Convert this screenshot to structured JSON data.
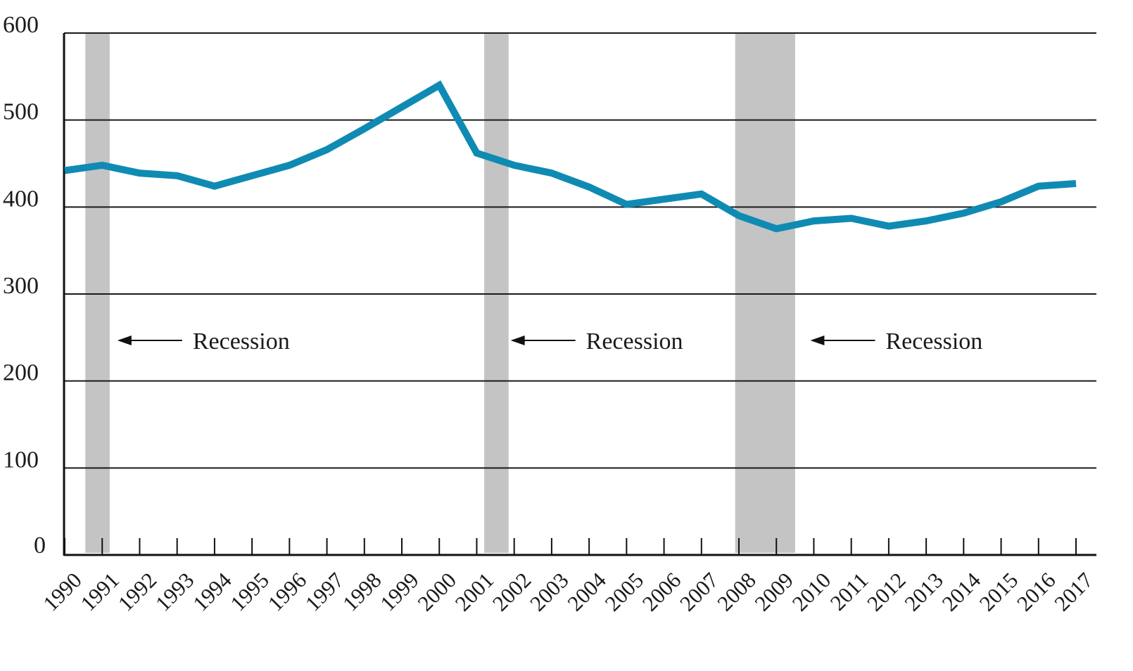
{
  "chart_data": {
    "type": "line",
    "title": "",
    "xlabel": "",
    "ylabel": "",
    "x": [
      1990,
      1991,
      1992,
      1993,
      1994,
      1995,
      1996,
      1997,
      1998,
      1999,
      2000,
      2001,
      2002,
      2003,
      2004,
      2005,
      2006,
      2007,
      2008,
      2009,
      2010,
      2011,
      2012,
      2013,
      2014,
      2015,
      2016,
      2017
    ],
    "ylim": [
      0,
      600
    ],
    "yticks": [
      0,
      100,
      200,
      300,
      400,
      500,
      600
    ],
    "grid": "horizontal",
    "series": [
      {
        "values": [
          442,
          448,
          439,
          436,
          424,
          436,
          448,
          466,
          490,
          515,
          540,
          462,
          448,
          439,
          423,
          403,
          409,
          415,
          390,
          375,
          384,
          387,
          378,
          384,
          393,
          406,
          424,
          427
        ],
        "color": "#0f8bb3"
      }
    ],
    "recessions": [
      {
        "start": 1990.55,
        "end": 1991.2
      },
      {
        "start": 2001.2,
        "end": 2001.85
      },
      {
        "start": 2007.9,
        "end": 2009.5
      }
    ],
    "annotations": [
      {
        "text": "Recession",
        "arrow_target_year": 1991.5
      },
      {
        "text": "Recession",
        "arrow_target_year": 2002.0
      },
      {
        "text": "Recession",
        "arrow_target_year": 2010.0
      }
    ],
    "colors": {
      "line": "#0f8bb3",
      "recession": "#c4c4c4",
      "grid": "#1a1a1a"
    }
  }
}
